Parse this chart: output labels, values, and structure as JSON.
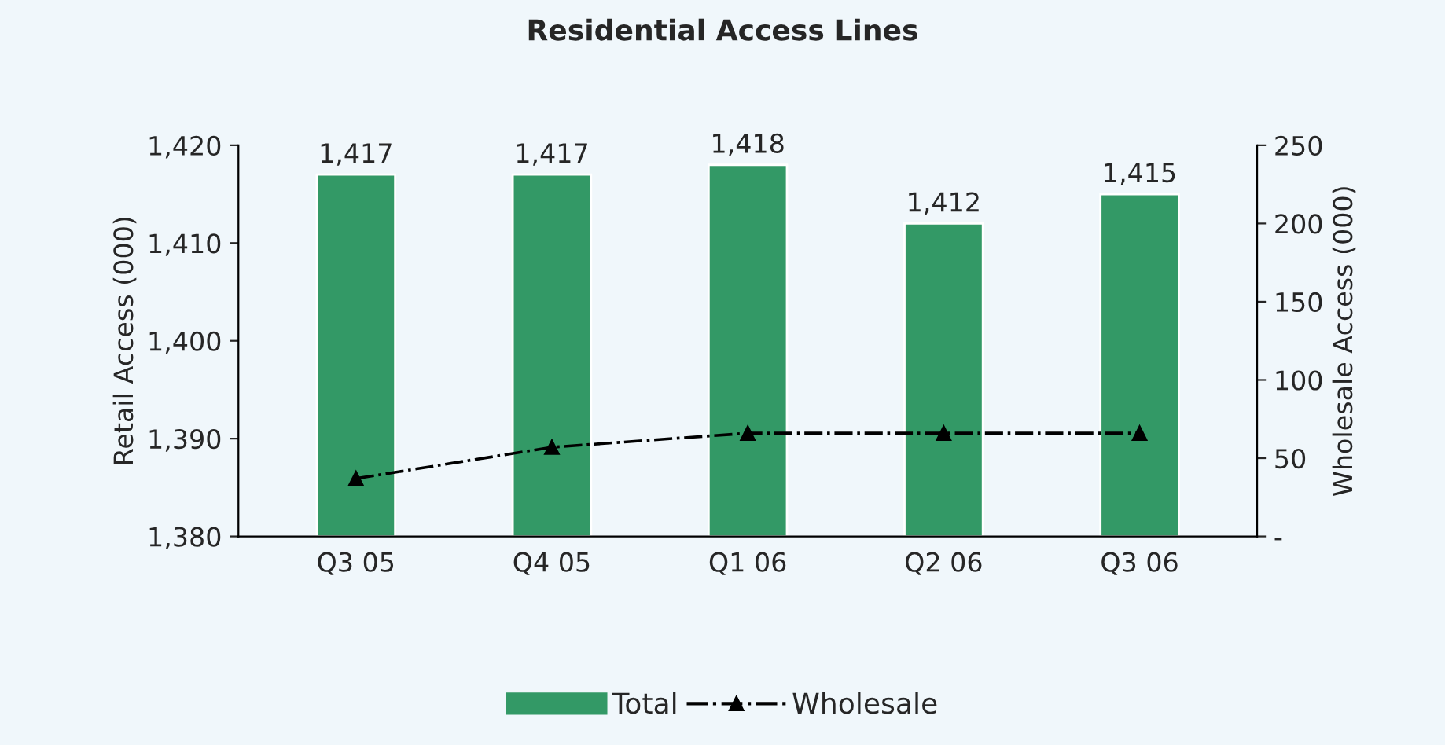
{
  "chart_data": {
    "type": "bar",
    "title": "Residential Access Lines",
    "ylabel": "Retail Access (000)",
    "y2label": "Wholesale Access (000)",
    "categories": [
      "Q3 05",
      "Q4 05",
      "Q1 06",
      "Q2 06",
      "Q3 06"
    ],
    "series": [
      {
        "name": "Total",
        "color": "#339966",
        "values": [
          1417,
          1417,
          1418,
          1412,
          1415
        ],
        "value_labels": [
          "1,417",
          "1,417",
          "1,418",
          "1,412",
          "1,415"
        ]
      },
      {
        "name": "Wholesale",
        "type": "line",
        "axis": "y2",
        "color": "#000000",
        "values": [
          37,
          57,
          66,
          66,
          66
        ],
        "marker": "triangle",
        "line_style": "dashdot"
      }
    ],
    "ylim": [
      1380,
      1420
    ],
    "yticks": [
      {
        "value": 1380,
        "label": "1,380"
      },
      {
        "value": 1390,
        "label": "1,390"
      },
      {
        "value": 1400,
        "label": "1,400"
      },
      {
        "value": 1410,
        "label": "1,410"
      },
      {
        "value": 1420,
        "label": "1,420"
      }
    ],
    "y2lim": [
      0,
      250
    ],
    "y2ticks": [
      {
        "value": 0,
        "label": "-"
      },
      50,
      100,
      150,
      200,
      250
    ],
    "grid": false,
    "legend": "bottom"
  }
}
